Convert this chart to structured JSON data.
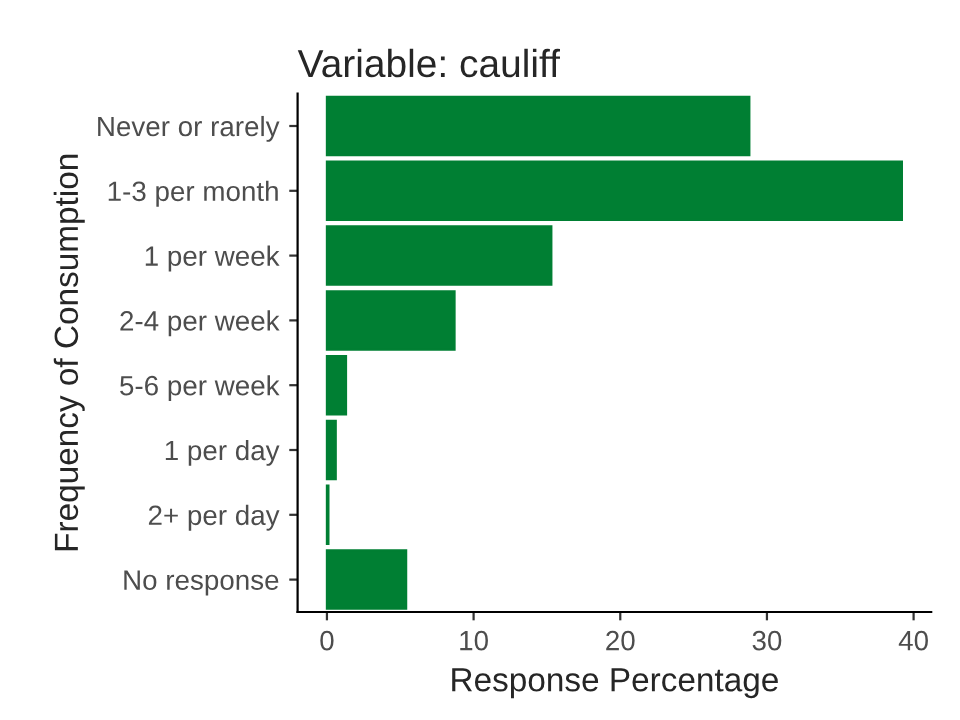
{
  "chart_data": {
    "type": "bar",
    "orientation": "horizontal",
    "title": "Variable: cauliff",
    "xlabel": "Response Percentage",
    "ylabel": "Frequency of Consumption",
    "categories": [
      "Never or rarely",
      "1-3 per month",
      "1 per week",
      "2-4 per week",
      "5-6 per week",
      "1 per day",
      "2+ per day",
      "No response"
    ],
    "values": [
      28.8,
      39.2,
      15.3,
      8.7,
      1.3,
      0.6,
      0.1,
      5.4
    ],
    "color": "#007f33",
    "xlim": [
      -2,
      41.2
    ],
    "xticks": [
      0,
      10,
      20,
      30,
      40
    ],
    "grid": false,
    "legend": false
  }
}
